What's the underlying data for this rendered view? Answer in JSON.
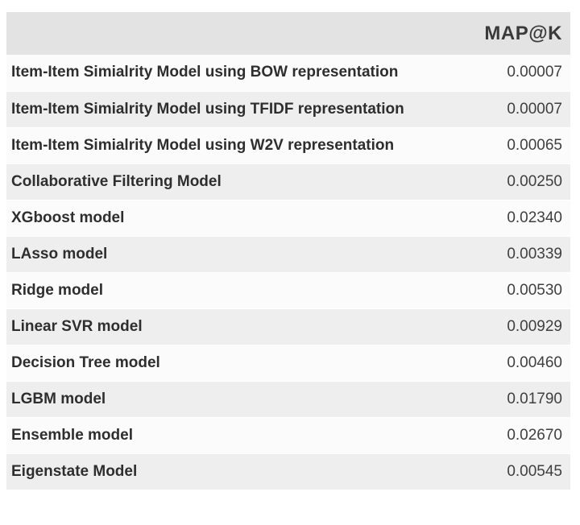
{
  "table": {
    "header": {
      "model_col": "",
      "metric_col": "MAP@K"
    },
    "rows": [
      {
        "model": "Item-Item Simialrity Model using BOW representation",
        "map_at_k": "0.00007"
      },
      {
        "model": "Item-Item Simialrity Model using TFIDF representation",
        "map_at_k": "0.00007"
      },
      {
        "model": "Item-Item Simialrity Model using W2V representation",
        "map_at_k": "0.00065"
      },
      {
        "model": "Collaborative Filtering Model",
        "map_at_k": "0.00250"
      },
      {
        "model": "XGboost model",
        "map_at_k": "0.02340"
      },
      {
        "model": "LAsso model",
        "map_at_k": "0.00339"
      },
      {
        "model": "Ridge model",
        "map_at_k": "0.00530"
      },
      {
        "model": "Linear SVR model",
        "map_at_k": "0.00929"
      },
      {
        "model": "Decision Tree model",
        "map_at_k": "0.00460"
      },
      {
        "model": "LGBM model",
        "map_at_k": "0.01790"
      },
      {
        "model": "Ensemble model",
        "map_at_k": "0.02670"
      },
      {
        "model": "Eigenstate Model",
        "map_at_k": "0.00545"
      }
    ]
  },
  "colors": {
    "header_bg": "#e3e3e3",
    "row_even_bg": "#eeeeef",
    "row_odd_bg": "#fbfbfb",
    "label_text": "#2e2e2e",
    "value_text": "#3f3f3f",
    "page_bg": "#ffffff"
  },
  "chart_data": {
    "type": "table",
    "title": "",
    "columns": [
      "",
      "MAP@K"
    ],
    "categories": [
      "Item-Item Simialrity Model using BOW representation",
      "Item-Item Simialrity Model using TFIDF representation",
      "Item-Item Simialrity Model using W2V representation",
      "Collaborative Filtering Model",
      "XGboost model",
      "LAsso model",
      "Ridge model",
      "Linear SVR model",
      "Decision Tree model",
      "LGBM model",
      "Ensemble model",
      "Eigenstate Model"
    ],
    "values": [
      7e-05,
      7e-05,
      0.00065,
      0.0025,
      0.0234,
      0.00339,
      0.0053,
      0.00929,
      0.0046,
      0.0179,
      0.0267,
      0.00545
    ]
  }
}
